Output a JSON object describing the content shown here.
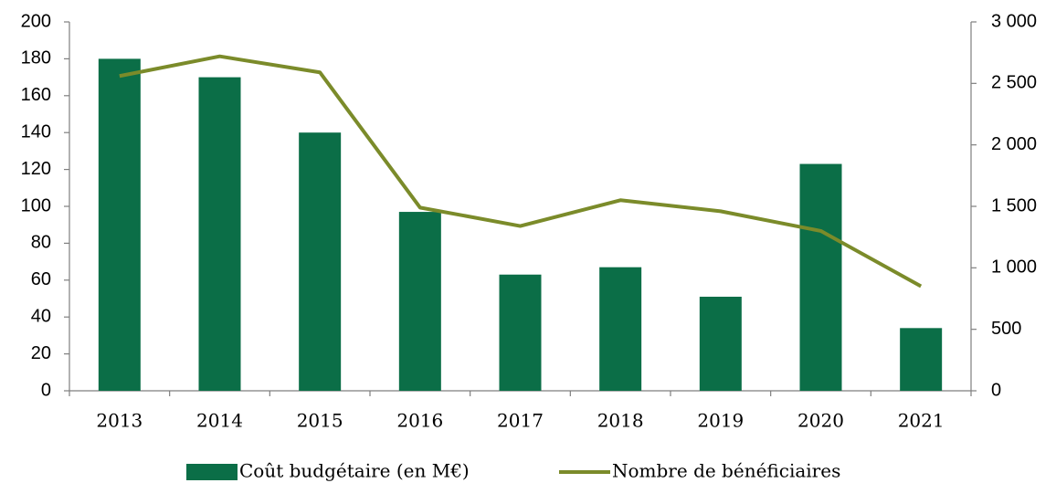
{
  "chart_data": {
    "type": "bar_line",
    "categories": [
      "2013",
      "2014",
      "2015",
      "2016",
      "2017",
      "2018",
      "2019",
      "2020",
      "2021"
    ],
    "series": [
      {
        "name": "Coût budgétaire (en M€)",
        "color": "#0b6e47",
        "type": "bar",
        "values": [
          180,
          170,
          140,
          97,
          63,
          67,
          51,
          123,
          34
        ]
      },
      {
        "name": "Nombre de bénéficiaires",
        "color": "#7b8b2a",
        "type": "line",
        "axis": "y2",
        "values": [
          2560,
          2720,
          2590,
          1490,
          1340,
          1550,
          1460,
          1300,
          850
        ]
      }
    ],
    "ylim": [
      0,
      200
    ],
    "yticks": [
      0,
      20,
      40,
      60,
      80,
      100,
      120,
      140,
      160,
      180,
      200
    ],
    "y2lim": [
      0,
      3000
    ],
    "y2ticks": [
      0,
      500,
      {
        "value": 1000,
        "label": "1 000"
      },
      {
        "value": 1500,
        "label": "1 500"
      },
      {
        "value": 2000,
        "label": "2 000"
      },
      {
        "value": 2500,
        "label": "2 500"
      },
      {
        "value": 3000,
        "label": "3 000"
      }
    ],
    "legend": "bottom",
    "grid": false
  }
}
